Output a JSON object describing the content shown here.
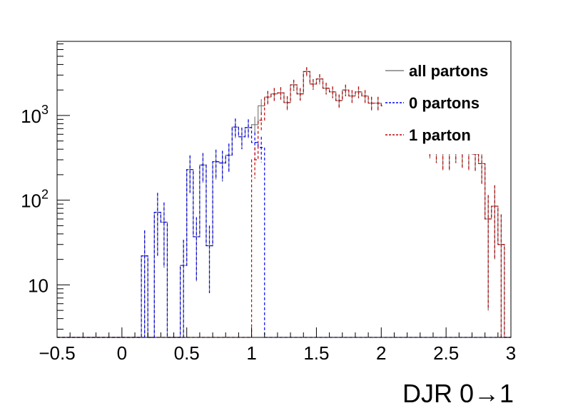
{
  "chart_data": {
    "type": "line",
    "subtype": "histogram-step",
    "title": "",
    "xlabel": "DJR 0→1",
    "ylabel": "",
    "yscale": "log",
    "xlim": [
      -0.5,
      3
    ],
    "ylim": [
      2.4,
      7500
    ],
    "x_ticks": [
      -0.5,
      0,
      0.5,
      1,
      1.5,
      2,
      2.5,
      3
    ],
    "x_tick_labels": [
      "−0.5",
      "0",
      "0.5",
      "1",
      "1.5",
      "2",
      "2.5",
      "3"
    ],
    "y_ticks": [
      10,
      100,
      1000
    ],
    "legend_position": "top-right",
    "grid": false,
    "bin_width": 0.05,
    "bin_lows": [
      -0.5,
      -0.45,
      -0.4,
      -0.35,
      -0.3,
      -0.25,
      -0.2,
      -0.15,
      -0.1,
      -0.05,
      0,
      0.05,
      0.1,
      0.15,
      0.2,
      0.25,
      0.3,
      0.35,
      0.4,
      0.45,
      0.5,
      0.55,
      0.6,
      0.65,
      0.7,
      0.75,
      0.8,
      0.85,
      0.9,
      0.95,
      1,
      1.05,
      1.1,
      1.15,
      1.2,
      1.25,
      1.3,
      1.35,
      1.4,
      1.45,
      1.5,
      1.55,
      1.6,
      1.65,
      1.7,
      1.75,
      1.8,
      1.85,
      1.9,
      1.95,
      2,
      2.05,
      2.1,
      2.15,
      2.2,
      2.25,
      2.3,
      2.35,
      2.4,
      2.45,
      2.5,
      2.55,
      2.6,
      2.65,
      2.7,
      2.75,
      2.8,
      2.85,
      2.9,
      2.95
    ],
    "series": [
      {
        "name": "all partons",
        "color": "#808080",
        "dash": "solid",
        "values": [
          0,
          0,
          0,
          0,
          0,
          0,
          0,
          0,
          0,
          0,
          0,
          0,
          0,
          22,
          0,
          72,
          55,
          0,
          0,
          17,
          230,
          37,
          260,
          29,
          285,
          275,
          340,
          730,
          560,
          720,
          780,
          1300,
          1650,
          1800,
          1850,
          1420,
          2300,
          1800,
          3300,
          2350,
          2700,
          2100,
          1900,
          1500,
          2000,
          1700,
          1900,
          1700,
          1400,
          1400,
          1300,
          900,
          1050,
          1000,
          650,
          600,
          520,
          460,
          420,
          360,
          360,
          420,
          380,
          360,
          350,
          270,
          60,
          85,
          30,
          0
        ],
        "errors": [
          0,
          0,
          0,
          0,
          0,
          0,
          0,
          0,
          0,
          0,
          0,
          0,
          0,
          22,
          0,
          50,
          39,
          0,
          0,
          17,
          108,
          26,
          100,
          21,
          110,
          108,
          125,
          190,
          160,
          180,
          190,
          260,
          300,
          310,
          310,
          270,
          340,
          300,
          410,
          340,
          370,
          330,
          300,
          270,
          310,
          290,
          300,
          290,
          260,
          260,
          250,
          210,
          230,
          220,
          180,
          170,
          160,
          150,
          145,
          135,
          135,
          145,
          140,
          135,
          130,
          115,
          55,
          65,
          38,
          0
        ]
      },
      {
        "name": "0 partons",
        "color": "#0000ff",
        "dash": "dashed",
        "values": [
          0,
          0,
          0,
          0,
          0,
          0,
          0,
          0,
          0,
          0,
          0,
          0,
          0,
          22,
          0,
          72,
          55,
          0,
          0,
          17,
          230,
          37,
          260,
          29,
          285,
          275,
          340,
          730,
          560,
          720,
          480,
          420,
          0,
          0,
          0,
          0,
          0,
          0,
          0,
          0,
          0,
          0,
          0,
          0,
          0,
          0,
          0,
          0,
          0,
          0,
          0,
          0,
          0,
          0,
          0,
          0,
          0,
          0,
          0,
          0,
          0,
          0,
          0,
          0,
          0,
          0,
          0,
          0,
          0,
          0
        ],
        "errors": [
          0,
          0,
          0,
          0,
          0,
          0,
          0,
          0,
          0,
          0,
          0,
          0,
          0,
          22,
          0,
          50,
          39,
          0,
          0,
          17,
          108,
          26,
          100,
          21,
          110,
          108,
          125,
          190,
          160,
          180,
          150,
          140,
          0,
          0,
          0,
          0,
          0,
          0,
          0,
          0,
          0,
          0,
          0,
          0,
          0,
          0,
          0,
          0,
          0,
          0,
          0,
          0,
          0,
          0,
          0,
          0,
          0,
          0,
          0,
          0,
          0,
          0,
          0,
          0,
          0,
          0,
          0,
          0,
          0,
          0
        ]
      },
      {
        "name": "1 parton",
        "color": "#c00000",
        "dash": "dashed",
        "values": [
          0,
          0,
          0,
          0,
          0,
          0,
          0,
          0,
          0,
          0,
          0,
          0,
          0,
          0,
          0,
          0,
          0,
          0,
          0,
          0,
          0,
          0,
          0,
          0,
          0,
          0,
          0,
          0,
          0,
          0,
          300,
          880,
          1650,
          1800,
          1850,
          1420,
          2300,
          1800,
          3300,
          2350,
          2700,
          2100,
          1900,
          1500,
          2000,
          1700,
          1900,
          1700,
          1400,
          1400,
          1300,
          900,
          1050,
          1000,
          650,
          600,
          520,
          460,
          420,
          360,
          360,
          420,
          380,
          360,
          350,
          270,
          60,
          85,
          30,
          0
        ],
        "errors": [
          0,
          0,
          0,
          0,
          0,
          0,
          0,
          0,
          0,
          0,
          0,
          0,
          0,
          0,
          0,
          0,
          0,
          0,
          0,
          0,
          0,
          0,
          0,
          0,
          0,
          0,
          0,
          0,
          0,
          0,
          120,
          210,
          300,
          310,
          310,
          270,
          340,
          300,
          410,
          340,
          370,
          330,
          300,
          270,
          310,
          290,
          300,
          290,
          260,
          260,
          250,
          210,
          230,
          220,
          180,
          170,
          160,
          150,
          145,
          135,
          135,
          145,
          140,
          135,
          130,
          115,
          55,
          65,
          38,
          0
        ]
      }
    ]
  }
}
